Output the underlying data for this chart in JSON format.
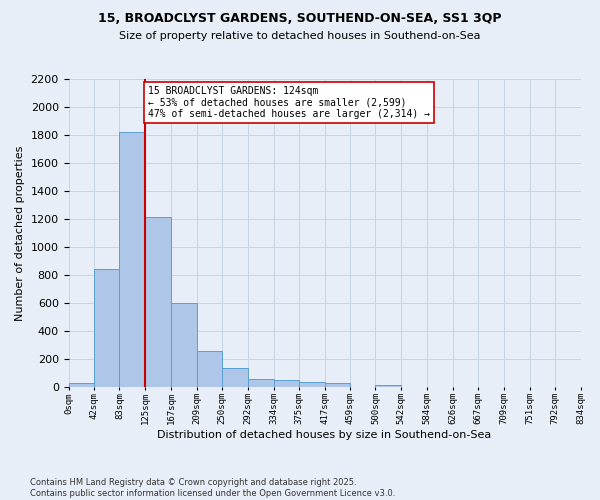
{
  "title1": "15, BROADCLYST GARDENS, SOUTHEND-ON-SEA, SS1 3QP",
  "title2": "Size of property relative to detached houses in Southend-on-Sea",
  "xlabel": "Distribution of detached houses by size in Southend-on-Sea",
  "ylabel": "Number of detached properties",
  "bar_values": [
    25,
    840,
    1820,
    1210,
    600,
    255,
    130,
    55,
    45,
    35,
    25,
    0,
    15,
    0,
    0,
    0,
    0,
    0,
    0,
    0
  ],
  "bin_edges": [
    0,
    42,
    83,
    125,
    167,
    209,
    250,
    292,
    334,
    375,
    417,
    459,
    500,
    542,
    584,
    626,
    667,
    709,
    751,
    792,
    834
  ],
  "tick_labels": [
    "0sqm",
    "42sqm",
    "83sqm",
    "125sqm",
    "167sqm",
    "209sqm",
    "250sqm",
    "292sqm",
    "334sqm",
    "375sqm",
    "417sqm",
    "459sqm",
    "500sqm",
    "542sqm",
    "584sqm",
    "626sqm",
    "667sqm",
    "709sqm",
    "751sqm",
    "792sqm",
    "834sqm"
  ],
  "bar_color": "#aec6e8",
  "bar_edge_color": "#5a9fd4",
  "property_size": 124,
  "vline_color": "#cc0000",
  "annotation_text": "15 BROADCLYST GARDENS: 124sqm\n← 53% of detached houses are smaller (2,599)\n47% of semi-detached houses are larger (2,314) →",
  "annotation_box_color": "#ffffff",
  "annotation_box_edge": "#cc0000",
  "footer1": "Contains HM Land Registry data © Crown copyright and database right 2025.",
  "footer2": "Contains public sector information licensed under the Open Government Licence v3.0.",
  "bg_color": "#e8eef8",
  "grid_color": "#c8d4e4",
  "ylim": [
    0,
    2200
  ],
  "yticks": [
    0,
    200,
    400,
    600,
    800,
    1000,
    1200,
    1400,
    1600,
    1800,
    2000,
    2200
  ]
}
